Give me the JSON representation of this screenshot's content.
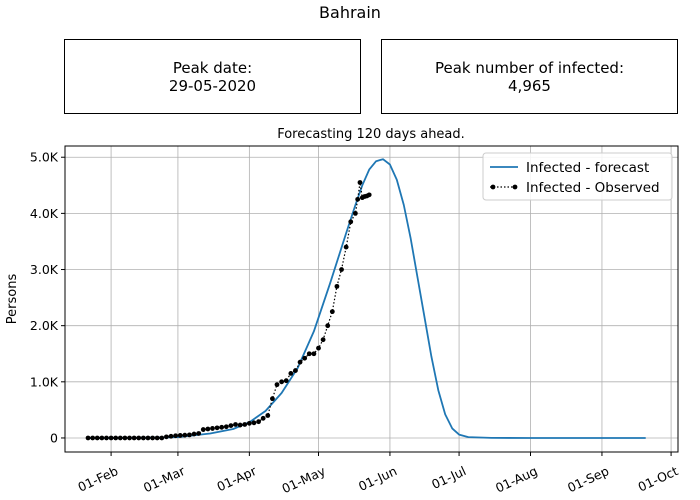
{
  "page": {
    "title": "Bahrain",
    "subtitle": "Forecasting 120 days ahead."
  },
  "boxes": {
    "peak_date_label": "Peak date:",
    "peak_date_value": "29-05-2020",
    "peak_infected_label": "Peak number of infected:",
    "peak_infected_value": "4,965"
  },
  "colors": {
    "forecast": "#1f77b4",
    "observed": "#000000",
    "grid": "#b0b0b0"
  },
  "chart_data": {
    "type": "line",
    "ylabel": "Persons",
    "xlabel": "",
    "xlim": [
      "2020-01-12",
      "2020-10-04"
    ],
    "ylim": [
      -250,
      5200
    ],
    "grid": true,
    "legend_position": "top-right",
    "x_ticks": [
      {
        "date": "2020-02-01",
        "label": "01-Feb"
      },
      {
        "date": "2020-03-01",
        "label": "01-Mar"
      },
      {
        "date": "2020-04-01",
        "label": "01-Apr"
      },
      {
        "date": "2020-05-01",
        "label": "01-May"
      },
      {
        "date": "2020-06-01",
        "label": "01-Jun"
      },
      {
        "date": "2020-07-01",
        "label": "01-Jul"
      },
      {
        "date": "2020-08-01",
        "label": "01-Aug"
      },
      {
        "date": "2020-09-01",
        "label": "01-Sep"
      },
      {
        "date": "2020-10-01",
        "label": "01-Oct"
      }
    ],
    "y_ticks": [
      {
        "value": 0,
        "label": "0"
      },
      {
        "value": 1000,
        "label": "1.0K"
      },
      {
        "value": 2000,
        "label": "2.0K"
      },
      {
        "value": 3000,
        "label": "3.0K"
      },
      {
        "value": 4000,
        "label": "4.0K"
      },
      {
        "value": 5000,
        "label": "5.0K"
      }
    ],
    "series": [
      {
        "name": "Infected - forecast",
        "style": "line",
        "points": [
          [
            "2020-01-22",
            0
          ],
          [
            "2020-02-15",
            3
          ],
          [
            "2020-03-01",
            15
          ],
          [
            "2020-03-15",
            80
          ],
          [
            "2020-03-25",
            160
          ],
          [
            "2020-04-01",
            280
          ],
          [
            "2020-04-08",
            480
          ],
          [
            "2020-04-15",
            800
          ],
          [
            "2020-04-22",
            1250
          ],
          [
            "2020-04-29",
            1900
          ],
          [
            "2020-05-06",
            2750
          ],
          [
            "2020-05-13",
            3650
          ],
          [
            "2020-05-17",
            4150
          ],
          [
            "2020-05-20",
            4500
          ],
          [
            "2020-05-23",
            4780
          ],
          [
            "2020-05-26",
            4930
          ],
          [
            "2020-05-29",
            4965
          ],
          [
            "2020-06-01",
            4870
          ],
          [
            "2020-06-04",
            4600
          ],
          [
            "2020-06-07",
            4150
          ],
          [
            "2020-06-10",
            3550
          ],
          [
            "2020-06-13",
            2850
          ],
          [
            "2020-06-16",
            2150
          ],
          [
            "2020-06-19",
            1450
          ],
          [
            "2020-06-22",
            850
          ],
          [
            "2020-06-25",
            420
          ],
          [
            "2020-06-28",
            170
          ],
          [
            "2020-07-01",
            60
          ],
          [
            "2020-07-05",
            15
          ],
          [
            "2020-07-15",
            2
          ],
          [
            "2020-08-01",
            0
          ],
          [
            "2020-09-01",
            0
          ],
          [
            "2020-09-20",
            0
          ]
        ]
      },
      {
        "name": "Infected - Observed",
        "style": "dotted-markers",
        "points": [
          [
            "2020-01-22",
            0
          ],
          [
            "2020-01-24",
            0
          ],
          [
            "2020-01-26",
            0
          ],
          [
            "2020-01-28",
            0
          ],
          [
            "2020-01-30",
            0
          ],
          [
            "2020-02-01",
            0
          ],
          [
            "2020-02-03",
            0
          ],
          [
            "2020-02-05",
            0
          ],
          [
            "2020-02-07",
            0
          ],
          [
            "2020-02-09",
            0
          ],
          [
            "2020-02-11",
            0
          ],
          [
            "2020-02-13",
            0
          ],
          [
            "2020-02-15",
            0
          ],
          [
            "2020-02-17",
            0
          ],
          [
            "2020-02-19",
            0
          ],
          [
            "2020-02-21",
            0
          ],
          [
            "2020-02-23",
            0
          ],
          [
            "2020-02-25",
            20
          ],
          [
            "2020-02-27",
            30
          ],
          [
            "2020-02-29",
            40
          ],
          [
            "2020-03-02",
            45
          ],
          [
            "2020-03-04",
            50
          ],
          [
            "2020-03-06",
            55
          ],
          [
            "2020-03-08",
            70
          ],
          [
            "2020-03-10",
            80
          ],
          [
            "2020-03-12",
            150
          ],
          [
            "2020-03-14",
            160
          ],
          [
            "2020-03-16",
            170
          ],
          [
            "2020-03-18",
            180
          ],
          [
            "2020-03-20",
            190
          ],
          [
            "2020-03-22",
            200
          ],
          [
            "2020-03-24",
            220
          ],
          [
            "2020-03-26",
            240
          ],
          [
            "2020-03-28",
            230
          ],
          [
            "2020-03-30",
            240
          ],
          [
            "2020-04-01",
            260
          ],
          [
            "2020-04-03",
            270
          ],
          [
            "2020-04-05",
            290
          ],
          [
            "2020-04-07",
            350
          ],
          [
            "2020-04-09",
            400
          ],
          [
            "2020-04-11",
            700
          ],
          [
            "2020-04-13",
            950
          ],
          [
            "2020-04-15",
            1000
          ],
          [
            "2020-04-17",
            1020
          ],
          [
            "2020-04-19",
            1150
          ],
          [
            "2020-04-21",
            1200
          ],
          [
            "2020-04-23",
            1350
          ],
          [
            "2020-04-25",
            1420
          ],
          [
            "2020-04-27",
            1500
          ],
          [
            "2020-04-29",
            1500
          ],
          [
            "2020-05-01",
            1600
          ],
          [
            "2020-05-03",
            1750
          ],
          [
            "2020-05-05",
            2000
          ],
          [
            "2020-05-07",
            2250
          ],
          [
            "2020-05-09",
            2700
          ],
          [
            "2020-05-11",
            3000
          ],
          [
            "2020-05-13",
            3400
          ],
          [
            "2020-05-15",
            3850
          ],
          [
            "2020-05-17",
            4000
          ],
          [
            "2020-05-18",
            4250
          ],
          [
            "2020-05-19",
            4550
          ],
          [
            "2020-05-20",
            4280
          ],
          [
            "2020-05-21",
            4300
          ],
          [
            "2020-05-22",
            4310
          ],
          [
            "2020-05-23",
            4330
          ]
        ]
      }
    ]
  }
}
